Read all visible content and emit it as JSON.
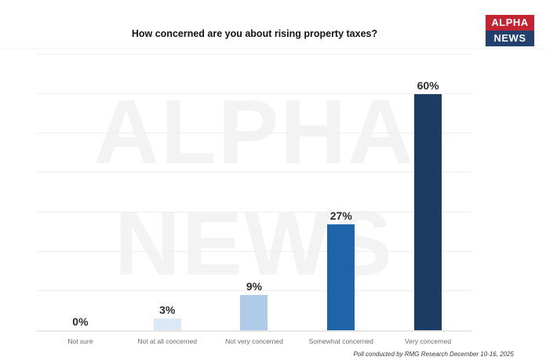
{
  "header": {
    "logo": {
      "line1": "ALPHA",
      "line2": "NEWS",
      "line1_bg": "#c22531",
      "line2_bg": "#21406e"
    }
  },
  "watermark": {
    "line1": "ALPHA",
    "line2": "NEWS"
  },
  "footer": {
    "credit": "Poll conducted by RMG Research December 10-16, 2025"
  },
  "chart_data": {
    "type": "bar",
    "title": "How concerned are you about rising property taxes?",
    "categories": [
      "Not sure",
      "Not at all concerned",
      "Not very concerned",
      "Somewhat concerned",
      "Very concerned"
    ],
    "values": [
      0,
      3,
      9,
      27,
      60
    ],
    "value_labels": [
      "0%",
      "3%",
      "9%",
      "27%",
      "60%"
    ],
    "bar_colors": [
      "#dbe8f5",
      "#dbe8f5",
      "#aecbe8",
      "#1f63a8",
      "#1d3c63"
    ],
    "xlabel": "",
    "ylabel": "",
    "ylim": [
      0,
      70
    ],
    "grid_step": 10,
    "grid": "horizontal",
    "legend": "none"
  }
}
